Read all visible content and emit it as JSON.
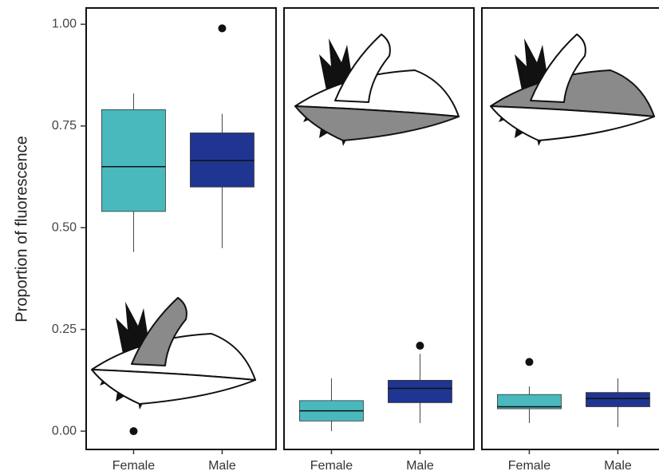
{
  "chart_data": [
    {
      "type": "box",
      "ylabel": "Proportion of fluorescence",
      "categories": [
        "Female",
        "Male"
      ],
      "colors": [
        "#49b9bd",
        "#1f3591"
      ],
      "ylim": [
        -0.045,
        1.04
      ],
      "yticks": [
        {
          "value": 0,
          "label": "0.00"
        },
        {
          "value": 0.25,
          "label": "0.25"
        },
        {
          "value": 0.5,
          "label": "0.50"
        },
        {
          "value": 0.75,
          "label": "0.75"
        },
        {
          "value": 1,
          "label": "1.00"
        }
      ],
      "boxes": [
        {
          "whislo": 0.44,
          "q1": 0.54,
          "med": 0.65,
          "q3": 0.79,
          "whishi": 0.83,
          "fliers": [
            0.0
          ]
        },
        {
          "whislo": 0.45,
          "q1": 0.6,
          "med": 0.665,
          "q3": 0.733,
          "whishi": 0.78,
          "fliers": [
            0.99
          ]
        }
      ]
    },
    {
      "type": "box",
      "categories": [
        "Female",
        "Male"
      ],
      "colors": [
        "#49b9bd",
        "#1f3591"
      ],
      "ylim": [
        -0.045,
        1.04
      ],
      "boxes": [
        {
          "whislo": 0.0,
          "q1": 0.025,
          "med": 0.05,
          "q3": 0.075,
          "whishi": 0.13,
          "fliers": []
        },
        {
          "whislo": 0.02,
          "q1": 0.07,
          "med": 0.105,
          "q3": 0.125,
          "whishi": 0.19,
          "fliers": [
            0.21
          ]
        }
      ]
    },
    {
      "type": "box",
      "categories": [
        "Female",
        "Male"
      ],
      "colors": [
        "#49b9bd",
        "#1f3591"
      ],
      "ylim": [
        -0.045,
        1.04
      ],
      "boxes": [
        {
          "whislo": 0.02,
          "q1": 0.055,
          "med": 0.06,
          "q3": 0.09,
          "whishi": 0.11,
          "fliers": [
            0.17
          ]
        },
        {
          "whislo": 0.01,
          "q1": 0.06,
          "med": 0.08,
          "q3": 0.095,
          "whishi": 0.13,
          "fliers": []
        }
      ]
    }
  ]
}
